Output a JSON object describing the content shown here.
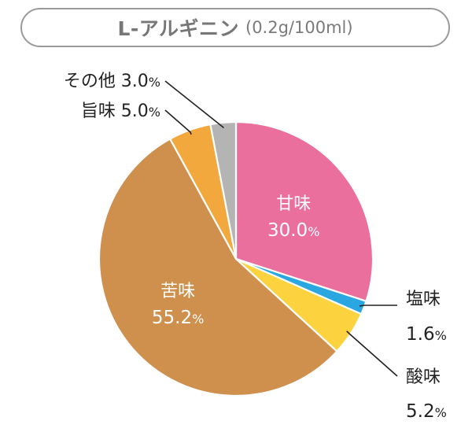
{
  "chart_data": {
    "type": "pie",
    "title": "L-アルギニン",
    "subtitle": "(0.2g/100ml)",
    "slices": [
      {
        "label": "甘味",
        "value": 30.0,
        "color": "#ea6f9c"
      },
      {
        "label": "塩味",
        "value": 1.6,
        "color": "#2aa7e0"
      },
      {
        "label": "酸味",
        "value": 5.2,
        "color": "#fdd23f"
      },
      {
        "label": "苦味",
        "value": 55.2,
        "color": "#cf8f4d"
      },
      {
        "label": "旨味",
        "value": 5.0,
        "color": "#f3a83d"
      },
      {
        "label": "その他",
        "value": 3.0,
        "color": "#b4b4b4"
      }
    ],
    "value_suffix": "%"
  }
}
